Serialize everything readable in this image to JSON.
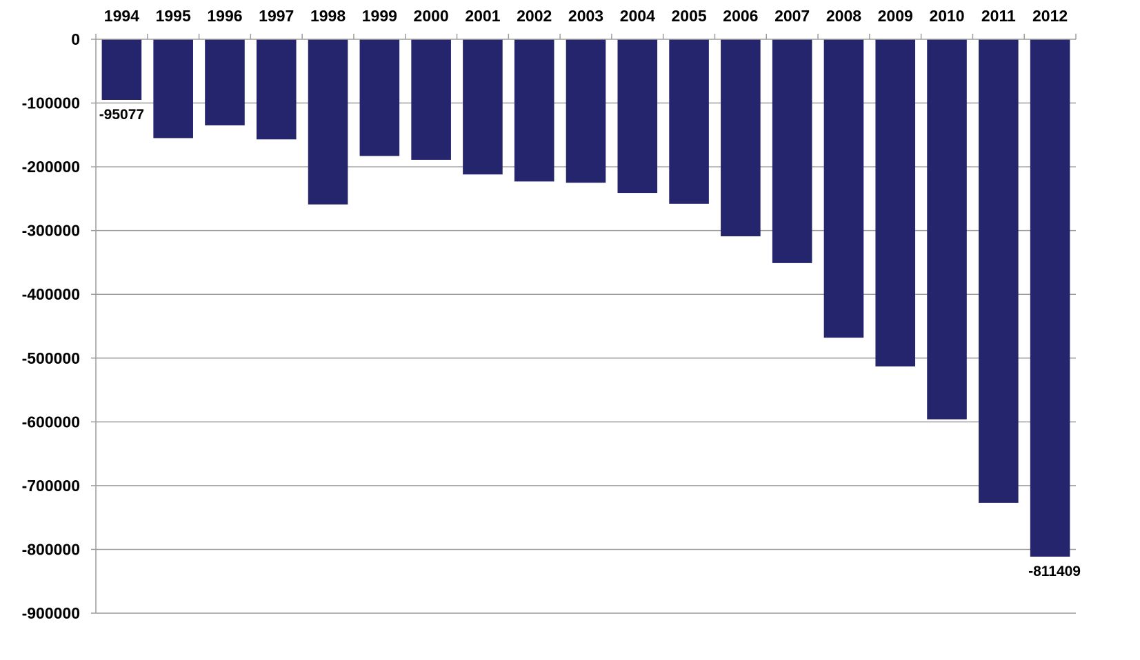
{
  "chart_data": {
    "type": "bar",
    "title": "",
    "xlabel": "",
    "ylabel": "",
    "x_axis_position": "top",
    "categories": [
      "1994",
      "1995",
      "1996",
      "1997",
      "1998",
      "1999",
      "2000",
      "2001",
      "2002",
      "2003",
      "2004",
      "2005",
      "2006",
      "2007",
      "2008",
      "2009",
      "2010",
      "2011",
      "2012"
    ],
    "values": [
      -95077,
      -155000,
      -135000,
      -157000,
      -259000,
      -183000,
      -189000,
      -212000,
      -223000,
      -225000,
      -241000,
      -258000,
      -309000,
      -351000,
      -468000,
      -513000,
      -596000,
      -727000,
      -811409
    ],
    "data_labels": [
      {
        "category": "1994",
        "text": "-95077"
      },
      {
        "category": "2012",
        "text": "-811409"
      }
    ],
    "ylim": [
      -900000,
      0
    ],
    "yticks": [
      0,
      -100000,
      -200000,
      -300000,
      -400000,
      -500000,
      -600000,
      -700000,
      -800000,
      -900000
    ],
    "ytick_labels": [
      "0",
      "-100000",
      "-200000",
      "-300000",
      "-400000",
      "-500000",
      "-600000",
      "-700000",
      "-800000",
      "-900000"
    ],
    "grid": true,
    "legend": "none",
    "colors": {
      "bar": "#25256d",
      "grid": "#9c9c9c",
      "axis": "#9c9c9c",
      "text": "#000000"
    }
  }
}
